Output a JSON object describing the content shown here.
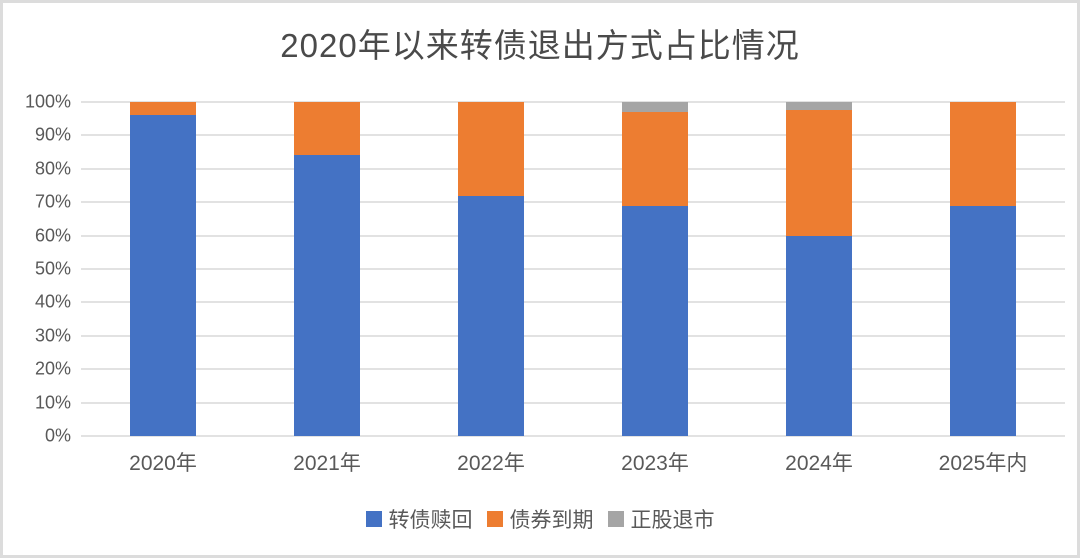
{
  "chart_data": {
    "type": "bar",
    "stacked": true,
    "percent_stacked": true,
    "title": "2020年以来转债退出方式占比情况",
    "categories": [
      "2020年",
      "2021年",
      "2022年",
      "2023年",
      "2024年",
      "2025年内"
    ],
    "series": [
      {
        "name": "转债赎回",
        "color": "#4472C4",
        "values": [
          96,
          84,
          72,
          69,
          60,
          69
        ]
      },
      {
        "name": "债券到期",
        "color": "#ED7D31",
        "values": [
          4,
          16,
          28,
          28,
          37.5,
          31
        ]
      },
      {
        "name": "正股退市",
        "color": "#A5A5A5",
        "values": [
          0,
          0,
          0,
          3,
          2.5,
          0
        ]
      }
    ],
    "xlabel": "",
    "ylabel": "",
    "ylim": [
      0,
      100
    ],
    "yticks": [
      "0%",
      "10%",
      "20%",
      "30%",
      "40%",
      "50%",
      "60%",
      "70%",
      "80%",
      "90%",
      "100%"
    ],
    "grid": true,
    "legend_position": "bottom"
  },
  "styles": {
    "grid_color": "#e2e2e2",
    "axis_text_color": "#595959",
    "title_color": "#4a4a4a",
    "background": "#ffffff",
    "frame_border_color": "#dcdcdc"
  }
}
